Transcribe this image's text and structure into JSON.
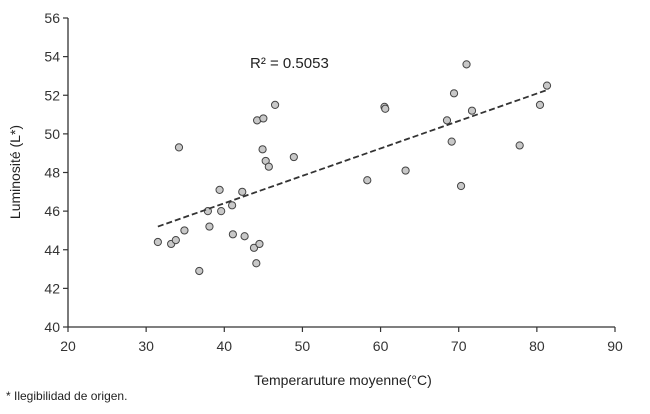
{
  "chart_data": {
    "type": "scatter",
    "title": "",
    "xlabel": "Temperaruture moyenne(°C)",
    "ylabel": "Luminosité (L*)",
    "xlim": [
      20,
      90
    ],
    "ylim": [
      40,
      56
    ],
    "xticks": [
      20,
      30,
      40,
      50,
      60,
      70,
      80,
      90
    ],
    "yticks": [
      40,
      42,
      44,
      46,
      48,
      50,
      52,
      54,
      56
    ],
    "grid": false,
    "annotation": "R² = 0.5053",
    "trendline": {
      "style": "dashed",
      "x": [
        31.5,
        81.5
      ],
      "y": [
        45.2,
        52.3
      ]
    },
    "points": [
      {
        "x": 31.5,
        "y": 44.4
      },
      {
        "x": 33.2,
        "y": 44.3
      },
      {
        "x": 33.8,
        "y": 44.5
      },
      {
        "x": 34.2,
        "y": 49.3
      },
      {
        "x": 34.9,
        "y": 45.0
      },
      {
        "x": 36.8,
        "y": 42.9
      },
      {
        "x": 37.9,
        "y": 46.0
      },
      {
        "x": 38.1,
        "y": 45.2
      },
      {
        "x": 39.4,
        "y": 47.1
      },
      {
        "x": 39.6,
        "y": 46.0
      },
      {
        "x": 41.0,
        "y": 46.3
      },
      {
        "x": 41.1,
        "y": 44.8
      },
      {
        "x": 42.3,
        "y": 47.0
      },
      {
        "x": 42.6,
        "y": 44.7
      },
      {
        "x": 43.8,
        "y": 44.1
      },
      {
        "x": 44.1,
        "y": 43.3
      },
      {
        "x": 44.2,
        "y": 50.7
      },
      {
        "x": 44.5,
        "y": 44.3
      },
      {
        "x": 44.9,
        "y": 49.2
      },
      {
        "x": 45.0,
        "y": 50.8
      },
      {
        "x": 45.3,
        "y": 48.6
      },
      {
        "x": 45.7,
        "y": 48.3
      },
      {
        "x": 46.5,
        "y": 51.5
      },
      {
        "x": 48.9,
        "y": 48.8
      },
      {
        "x": 58.3,
        "y": 47.6
      },
      {
        "x": 60.5,
        "y": 51.4
      },
      {
        "x": 60.6,
        "y": 51.3
      },
      {
        "x": 63.2,
        "y": 48.1
      },
      {
        "x": 68.5,
        "y": 50.7
      },
      {
        "x": 69.1,
        "y": 49.6
      },
      {
        "x": 69.4,
        "y": 52.1
      },
      {
        "x": 70.3,
        "y": 47.3
      },
      {
        "x": 71.0,
        "y": 53.6
      },
      {
        "x": 71.7,
        "y": 51.2
      },
      {
        "x": 77.8,
        "y": 49.4
      },
      {
        "x": 80.4,
        "y": 51.5
      },
      {
        "x": 81.3,
        "y": 52.5
      }
    ]
  },
  "footnote": "* Ilegibilidad de origen."
}
